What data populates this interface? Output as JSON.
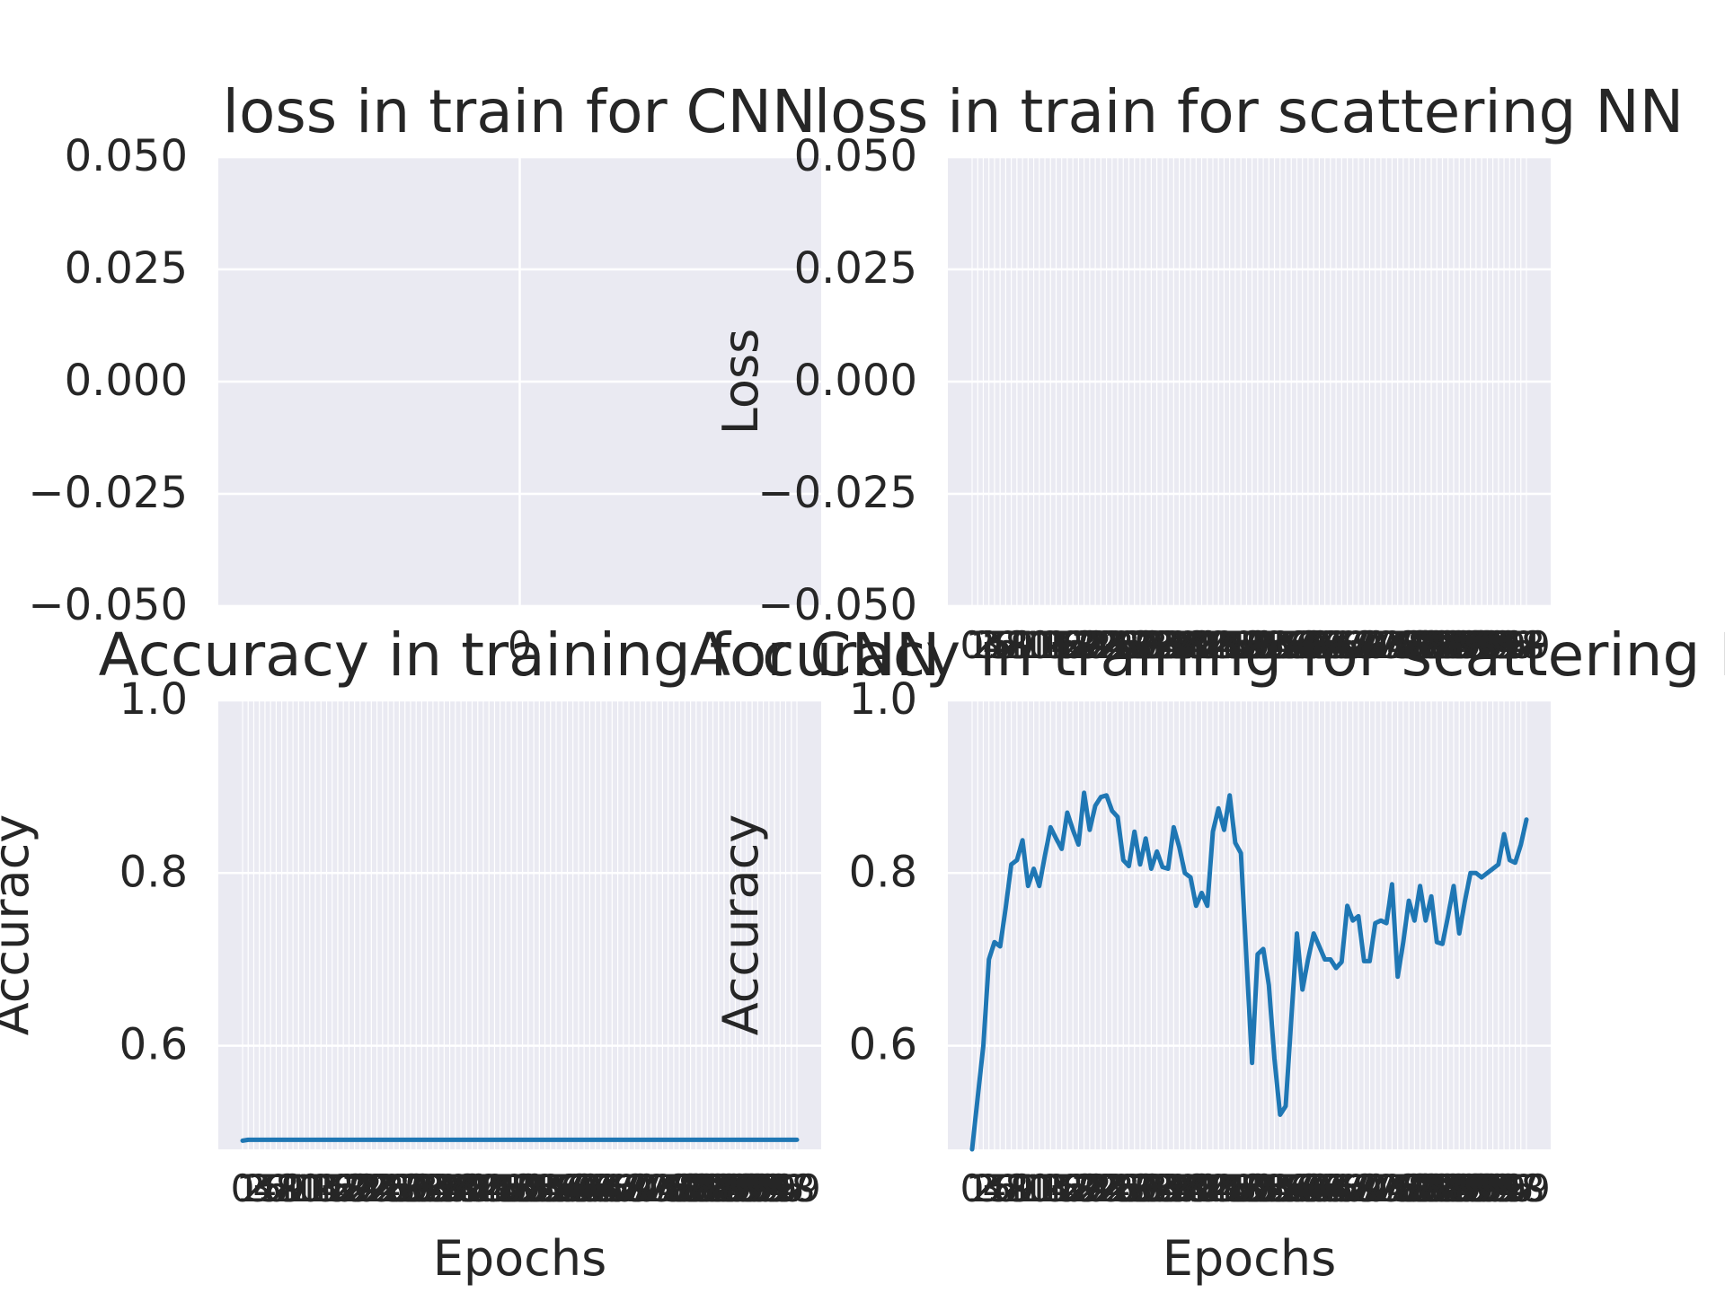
{
  "style": {
    "plot_bg": "#eaeaf2",
    "grid": "#ffffff",
    "text": "#262626",
    "line": "#1f77b4"
  },
  "chart_data": [
    {
      "type": "line",
      "title": "loss in train for CNN",
      "xlabel": "",
      "ylabel": "",
      "ylim": [
        -0.05,
        0.05
      ],
      "yticks": [
        "−0.050",
        "−0.025",
        "0.000",
        "0.025",
        "0.050"
      ],
      "xticks": [
        "0"
      ],
      "grid": true,
      "series": []
    },
    {
      "type": "line",
      "title": "loss in train for scattering NN",
      "xlabel": "",
      "ylabel": "Loss",
      "ylim": [
        -0.05,
        0.05
      ],
      "yticks": [
        "−0.050",
        "−0.025",
        "0.000",
        "0.025",
        "0.050"
      ],
      "x_count": 100,
      "grid": true,
      "series": []
    },
    {
      "type": "line",
      "title": "Accuracy in training for CNN",
      "xlabel": "Epochs",
      "ylabel": "Accuracy",
      "ylim": [
        0.48,
        1.0
      ],
      "yticks": [
        "0.6",
        "0.8",
        "1.0"
      ],
      "x_count": 100,
      "grid": true,
      "series": [
        {
          "values": [
            0.49,
            0.491,
            0.491,
            0.491,
            0.491,
            0.491,
            0.491,
            0.491,
            0.491,
            0.491,
            0.491,
            0.491,
            0.491,
            0.491,
            0.491,
            0.491,
            0.491,
            0.491,
            0.491,
            0.491,
            0.491,
            0.491,
            0.491,
            0.491,
            0.491,
            0.491,
            0.491,
            0.491,
            0.491,
            0.491,
            0.491,
            0.491,
            0.491,
            0.491,
            0.491,
            0.491,
            0.491,
            0.491,
            0.491,
            0.491,
            0.491,
            0.491,
            0.491,
            0.491,
            0.491,
            0.491,
            0.491,
            0.491,
            0.491,
            0.491,
            0.491,
            0.491,
            0.491,
            0.491,
            0.491,
            0.491,
            0.491,
            0.491,
            0.491,
            0.491,
            0.491,
            0.491,
            0.491,
            0.491,
            0.491,
            0.491,
            0.491,
            0.491,
            0.491,
            0.491,
            0.491,
            0.491,
            0.491,
            0.491,
            0.491,
            0.491,
            0.491,
            0.491,
            0.491,
            0.491,
            0.491,
            0.491,
            0.491,
            0.491,
            0.491,
            0.491,
            0.491,
            0.491,
            0.491,
            0.491,
            0.491,
            0.491,
            0.491,
            0.491,
            0.491,
            0.491,
            0.491,
            0.491,
            0.491,
            0.491
          ]
        }
      ]
    },
    {
      "type": "line",
      "title": "Accuracy in training for scattering NN",
      "xlabel": "Epochs",
      "ylabel": "Accuracy",
      "ylim": [
        0.48,
        1.0
      ],
      "yticks": [
        "0.6",
        "0.8",
        "1.0"
      ],
      "x_count": 100,
      "grid": true,
      "series": [
        {
          "values": [
            0.48,
            0.54,
            0.6,
            0.7,
            0.72,
            0.715,
            0.76,
            0.81,
            0.815,
            0.838,
            0.785,
            0.805,
            0.785,
            0.82,
            0.853,
            0.84,
            0.828,
            0.87,
            0.85,
            0.833,
            0.893,
            0.85,
            0.878,
            0.888,
            0.89,
            0.872,
            0.865,
            0.815,
            0.808,
            0.848,
            0.81,
            0.84,
            0.805,
            0.825,
            0.807,
            0.805,
            0.853,
            0.83,
            0.8,
            0.795,
            0.762,
            0.777,
            0.762,
            0.848,
            0.875,
            0.85,
            0.89,
            0.835,
            0.823,
            0.7,
            0.58,
            0.706,
            0.712,
            0.67,
            0.585,
            0.52,
            0.53,
            0.63,
            0.73,
            0.665,
            0.7,
            0.73,
            0.715,
            0.7,
            0.7,
            0.69,
            0.697,
            0.762,
            0.745,
            0.75,
            0.698,
            0.698,
            0.742,
            0.745,
            0.742,
            0.787,
            0.68,
            0.72,
            0.768,
            0.745,
            0.785,
            0.745,
            0.773,
            0.72,
            0.718,
            0.75,
            0.785,
            0.73,
            0.767,
            0.8,
            0.8,
            0.795,
            0.8,
            0.805,
            0.81,
            0.845,
            0.815,
            0.812,
            0.833,
            0.862
          ]
        }
      ]
    }
  ]
}
